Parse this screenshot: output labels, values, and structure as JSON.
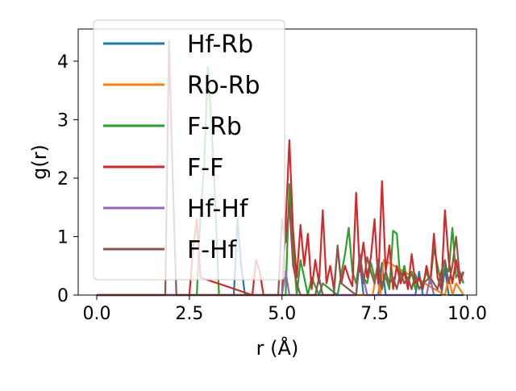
{
  "chart_data": {
    "type": "line",
    "title": "",
    "xlabel": "r (Å)",
    "ylabel": "g(r)",
    "xlim": [
      -0.5,
      10.25
    ],
    "ylim": [
      0,
      4.55
    ],
    "xticks": [
      0.0,
      2.5,
      5.0,
      7.5,
      10.0
    ],
    "xtick_labels": [
      "0.0",
      "2.5",
      "5.0",
      "7.5",
      "10.0"
    ],
    "yticks": [
      0,
      1,
      2,
      3,
      4
    ],
    "ytick_labels": [
      "0",
      "1",
      "2",
      "3",
      "4"
    ],
    "grid": false,
    "legend_position": "top-left",
    "series": [
      {
        "name": "Hf-Rb",
        "color": "#1f77b4",
        "x": [
          0,
          3.7,
          3.8,
          3.9,
          4.0,
          7.0,
          7.1,
          7.2,
          7.6,
          7.7,
          7.8,
          8.6,
          8.7,
          8.8,
          9.3,
          9.4,
          9.5,
          9.9
        ],
        "y": [
          0,
          0,
          1.3,
          0.5,
          0,
          0,
          0.6,
          0,
          0,
          0.55,
          0,
          0,
          0.4,
          0,
          0,
          0.45,
          0,
          0
        ]
      },
      {
        "name": "Rb-Rb",
        "color": "#ff7f0e",
        "x": [
          0,
          7.45,
          7.55,
          7.65,
          7.75,
          9.4,
          9.5,
          9.6,
          9.7,
          9.9
        ],
        "y": [
          0,
          0,
          0.4,
          0,
          0.6,
          0,
          0.3,
          0,
          0.2,
          0
        ]
      },
      {
        "name": "F-Rb",
        "color": "#2ca02c",
        "x": [
          0,
          2.7,
          2.8,
          2.9,
          3.0,
          3.1,
          3.2,
          3.3,
          5.1,
          5.2,
          5.3,
          5.4,
          5.5,
          5.7,
          5.8,
          6.0,
          6.1,
          6.5,
          6.7,
          6.8,
          6.9,
          7.0,
          7.1,
          7.2,
          7.3,
          7.4,
          7.5,
          7.6,
          7.7,
          7.8,
          7.9,
          8.0,
          8.1,
          8.2,
          8.3,
          8.4,
          8.5,
          8.6,
          8.7,
          8.8,
          8.9,
          9.0,
          9.1,
          9.3,
          9.4,
          9.5,
          9.6,
          9.7,
          9.8,
          9.9
        ],
        "y": [
          0,
          0,
          1.4,
          2.2,
          3.9,
          2.9,
          1.6,
          0,
          0,
          1.9,
          0.8,
          0,
          0.6,
          0,
          0.3,
          0,
          0.2,
          0,
          0.7,
          1.15,
          0.4,
          0.2,
          0.65,
          0.3,
          0.2,
          0.55,
          0.3,
          0.4,
          0.2,
          0.3,
          0.1,
          1.1,
          1.05,
          0.2,
          0.5,
          0.2,
          0.4,
          0.1,
          0.3,
          0.2,
          0.4,
          0.2,
          0.8,
          0.2,
          0.5,
          0.4,
          1.15,
          0.3,
          0.4,
          0.2
        ]
      },
      {
        "name": "F-F",
        "color": "#d62728",
        "x": [
          0,
          2.5,
          2.6,
          2.7,
          2.8,
          4.2,
          4.3,
          4.4,
          4.5,
          5.0,
          5.1,
          5.2,
          5.3,
          5.4,
          5.5,
          5.6,
          5.7,
          5.8,
          5.9,
          6.0,
          6.1,
          6.2,
          6.3,
          6.4,
          6.5,
          6.6,
          6.7,
          6.8,
          6.9,
          7.0,
          7.1,
          7.2,
          7.3,
          7.4,
          7.5,
          7.6,
          7.7,
          7.8,
          7.9,
          8.0,
          8.1,
          8.2,
          8.3,
          8.4,
          8.5,
          8.6,
          8.7,
          8.8,
          8.9,
          9.0,
          9.1,
          9.2,
          9.3,
          9.4,
          9.5,
          9.6,
          9.7,
          9.8,
          9.9
        ],
        "y": [
          0,
          0,
          0.8,
          1.3,
          0.3,
          0,
          0.6,
          0.4,
          0,
          0,
          1.2,
          2.65,
          1.1,
          0.3,
          1.2,
          0.5,
          1.05,
          0.1,
          0.6,
          0.2,
          1.45,
          0.2,
          0.5,
          0.1,
          0.8,
          0.2,
          0.5,
          0.3,
          0.15,
          1.75,
          0.4,
          0.9,
          0.3,
          0.65,
          1.3,
          0.2,
          1.95,
          0.4,
          0.85,
          0.1,
          0.5,
          0.2,
          0.4,
          0.1,
          0.7,
          0.2,
          0.3,
          0.1,
          0.5,
          0.2,
          1.05,
          0.3,
          0.1,
          1.45,
          0.6,
          0.2,
          0.6,
          0.2,
          0.4
        ]
      },
      {
        "name": "Hf-Hf",
        "color": "#9467bd",
        "x": [
          0,
          5.0,
          5.1,
          5.2,
          7.0,
          7.1,
          7.2,
          7.3,
          8.9,
          9.0,
          9.1
        ],
        "y": [
          0,
          0,
          0.4,
          0,
          0,
          0.7,
          0.3,
          0,
          0,
          0.3,
          0
        ]
      },
      {
        "name": "F-Hf",
        "color": "#8c564b",
        "x": [
          0,
          1.85,
          1.95,
          2.05,
          2.15,
          4.9,
          5.0,
          5.1,
          5.2,
          5.3,
          5.4,
          5.5,
          5.9,
          6.0,
          6.1,
          6.4,
          6.5,
          6.6,
          7.0,
          7.1,
          7.2,
          7.3,
          7.4,
          7.5,
          7.6,
          7.7,
          7.8,
          7.9,
          8.0,
          8.1,
          8.2,
          8.3,
          8.4,
          8.5,
          8.6,
          8.7,
          8.8,
          9.0,
          9.2,
          9.3,
          9.4,
          9.5,
          9.6,
          9.7,
          9.8,
          9.9
        ],
        "y": [
          0,
          0,
          4.35,
          2.0,
          0,
          0,
          1.3,
          0.9,
          1.55,
          0.5,
          0.2,
          0,
          0,
          0.3,
          0,
          0,
          0.85,
          0.2,
          0,
          0.7,
          0.2,
          0.65,
          0.4,
          0.2,
          0.6,
          0.1,
          0.4,
          0.2,
          0.3,
          0.1,
          0.4,
          0.2,
          0.3,
          0.1,
          0.35,
          0.1,
          0.2,
          0.3,
          0.1,
          0.4,
          0.6,
          0.2,
          0.5,
          1.0,
          0.3,
          0.4
        ]
      }
    ]
  }
}
